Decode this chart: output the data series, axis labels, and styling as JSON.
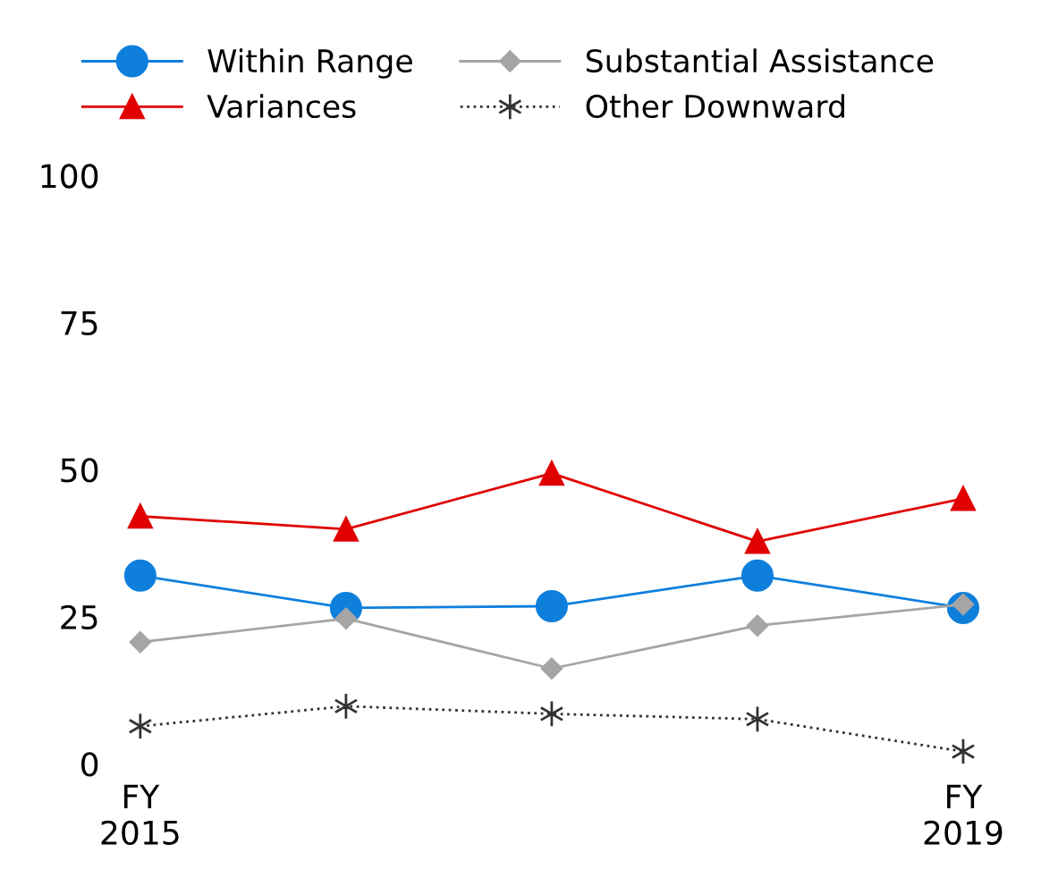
{
  "chart_data": {
    "type": "line",
    "categories": [
      "FY\n2015",
      null,
      null,
      null,
      "FY\n2019"
    ],
    "series": [
      {
        "name": "Within Range",
        "color": "#0f7fdc",
        "marker": "circle",
        "line_style": "solid",
        "values": [
          32.0,
          26.5,
          26.8,
          32.0,
          26.5
        ]
      },
      {
        "name": "Variances",
        "color": "#e00000",
        "marker": "triangle",
        "line_style": "solid",
        "values": [
          42.1,
          39.9,
          49.4,
          37.8,
          45.1
        ]
      },
      {
        "name": "Substantial Assistance",
        "color": "#a5a5a5",
        "marker": "diamond",
        "line_style": "solid",
        "values": [
          20.7,
          24.7,
          16.2,
          23.5,
          27.1
        ]
      },
      {
        "name": "Other Downward",
        "color": "#333333",
        "marker": "cross",
        "line_style": "dotted",
        "values": [
          6.4,
          9.8,
          8.5,
          7.6,
          2.1
        ]
      }
    ],
    "ylim": [
      0,
      100
    ],
    "yticks": [
      0,
      25,
      50,
      75,
      100
    ],
    "grid": false,
    "legend": "top"
  }
}
